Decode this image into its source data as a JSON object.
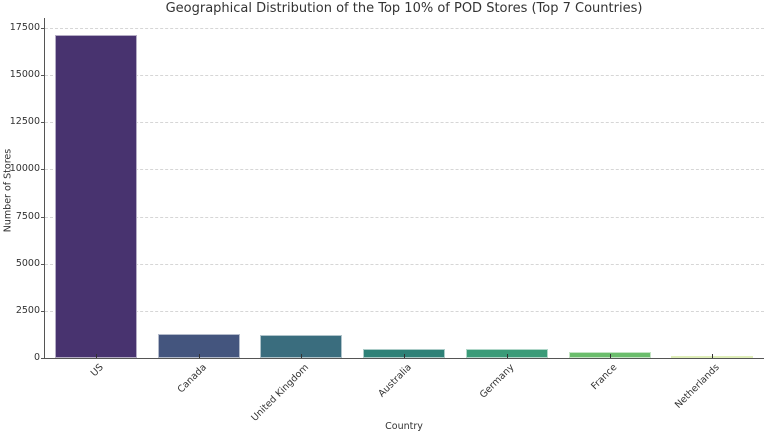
{
  "chart_data": {
    "type": "bar",
    "title": "Geographical Distribution of the Top 10% of POD Stores (Top 7 Countries)",
    "xlabel": "Country",
    "ylabel": "Number of Stores",
    "categories": [
      "US",
      "Canada",
      "United Kingdom",
      "Australia",
      "Germany",
      "France",
      "Netherlands"
    ],
    "values": [
      17150,
      1285,
      1195,
      490,
      475,
      300,
      105
    ],
    "colors": [
      "#48336f",
      "#44557e",
      "#3a6d7e",
      "#2e8177",
      "#3a9b78",
      "#6bbd6c",
      "#b0d44e"
    ],
    "yticks": [
      0,
      2500,
      5000,
      7500,
      10000,
      12500,
      15000,
      17500
    ],
    "ytick_labels": [
      "0",
      "2500",
      "5000",
      "7500",
      "10000",
      "12500",
      "15000",
      "17500"
    ],
    "ylim": [
      0,
      18000
    ],
    "grid": "y-dashed",
    "legend": "none",
    "x_tick_rotation": 45
  }
}
